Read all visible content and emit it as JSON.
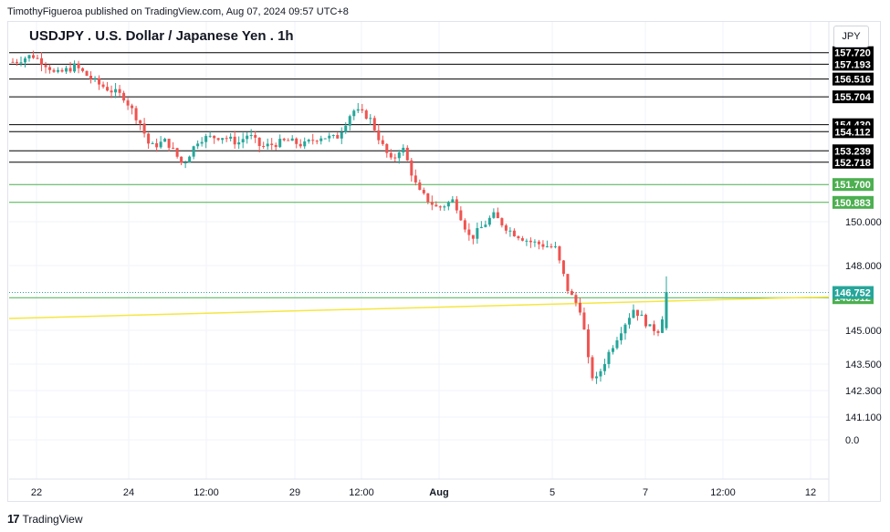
{
  "header": {
    "publisher_text": "TimothyFigueroa published on TradingView.com, Aug 07, 2024 09:57 UTC+8",
    "symbol_title": "USDJPY . U.S. Dollar / Japanese Yen . 1h",
    "currency_label": "JPY"
  },
  "footer": {
    "brand": "TradingView",
    "logo_glyph": "17"
  },
  "colors": {
    "up": "#26a69a",
    "down": "#ef5350",
    "resistance": "#000000",
    "support": "#4caf50",
    "trendline": "#f5e642",
    "grid": "#f0f3fa",
    "text": "#131722"
  },
  "chart_data": {
    "type": "candlestick",
    "title": "USDJPY . U.S. Dollar / Japanese Yen . 1h",
    "x_axis_labels": [
      "22",
      "24",
      "12:00",
      "29",
      "12:00",
      "Aug",
      "5",
      "7",
      "12:00",
      "12"
    ],
    "y_axis_labels": [
      "150.000",
      "148.000",
      "145.000",
      "143.500",
      "142.300",
      "141.100",
      "0.0"
    ],
    "ylim": [
      140.0,
      158.2
    ],
    "horizontal_levels": [
      {
        "value": 157.72,
        "label": "157.720",
        "kind": "resistance"
      },
      {
        "value": 157.193,
        "label": "157.193",
        "kind": "resistance"
      },
      {
        "value": 156.516,
        "label": "156.516",
        "kind": "resistance"
      },
      {
        "value": 155.704,
        "label": "155.704",
        "kind": "resistance"
      },
      {
        "value": 154.43,
        "label": "154.430",
        "kind": "resistance"
      },
      {
        "value": 154.112,
        "label": "154.112",
        "kind": "resistance"
      },
      {
        "value": 153.239,
        "label": "153.239",
        "kind": "resistance"
      },
      {
        "value": 152.718,
        "label": "152.718",
        "kind": "resistance"
      },
      {
        "value": 151.7,
        "label": "151.700",
        "kind": "support"
      },
      {
        "value": 150.883,
        "label": "150.883",
        "kind": "support"
      },
      {
        "value": 146.512,
        "label": "146.512",
        "kind": "support"
      }
    ],
    "current_price": {
      "value": 146.752,
      "label": "146.752"
    },
    "trendline": {
      "start": {
        "x": 0,
        "y": 145.55
      },
      "end": {
        "x": 1,
        "y": 146.55
      }
    },
    "price_path": [
      [
        0.0,
        157.3
      ],
      [
        0.03,
        157.6
      ],
      [
        0.055,
        157.1
      ],
      [
        0.065,
        156.7
      ],
      [
        0.095,
        157.1
      ],
      [
        0.13,
        156.3
      ],
      [
        0.17,
        155.7
      ],
      [
        0.195,
        154.5
      ],
      [
        0.21,
        153.4
      ],
      [
        0.235,
        153.7
      ],
      [
        0.26,
        152.6
      ],
      [
        0.285,
        153.8
      ],
      [
        0.32,
        153.9
      ],
      [
        0.345,
        153.6
      ],
      [
        0.36,
        154.0
      ],
      [
        0.38,
        153.4
      ],
      [
        0.42,
        153.7
      ],
      [
        0.445,
        153.5
      ],
      [
        0.47,
        153.9
      ],
      [
        0.495,
        153.8
      ],
      [
        0.52,
        155.1
      ],
      [
        0.545,
        154.8
      ],
      [
        0.565,
        153.5
      ],
      [
        0.58,
        152.7
      ],
      [
        0.595,
        153.5
      ],
      [
        0.62,
        151.4
      ],
      [
        0.65,
        150.6
      ],
      [
        0.675,
        151.0
      ],
      [
        0.7,
        149.2
      ],
      [
        0.735,
        150.3
      ],
      [
        0.76,
        149.6
      ],
      [
        0.79,
        149.1
      ],
      [
        0.83,
        148.8
      ],
      [
        0.85,
        146.8
      ],
      [
        0.87,
        145.9
      ],
      [
        0.88,
        143.7
      ],
      [
        0.89,
        142.6
      ],
      [
        0.91,
        143.9
      ],
      [
        0.93,
        145.0
      ],
      [
        0.95,
        146.0
      ],
      [
        0.965,
        145.5
      ],
      [
        0.975,
        145.1
      ],
      [
        0.99,
        145.0
      ],
      [
        1.0,
        146.75
      ]
    ]
  }
}
